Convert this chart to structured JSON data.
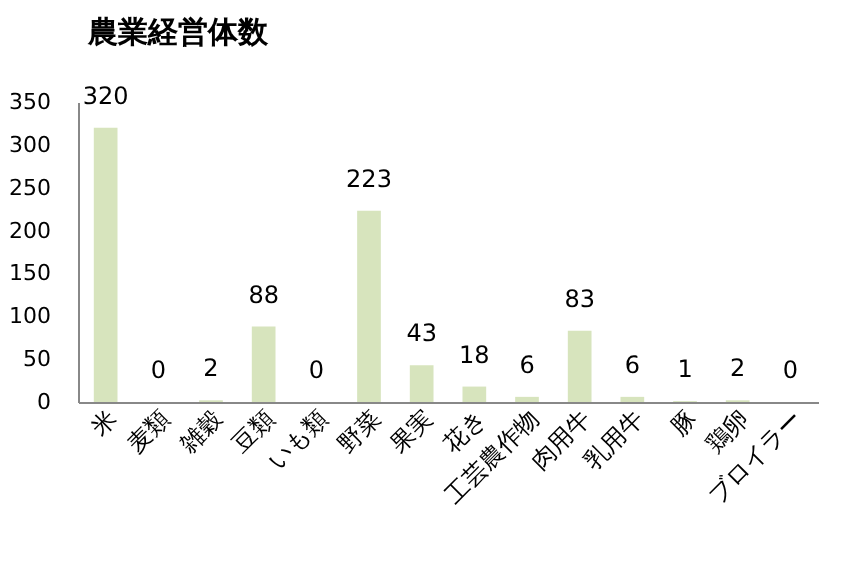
{
  "chart_data": {
    "type": "bar",
    "title": "農業経営体数",
    "categories": [
      "米",
      "麦類",
      "雑穀",
      "豆類",
      "いも類",
      "野菜",
      "果実",
      "花き",
      "工芸農作物",
      "肉用牛",
      "乳用牛",
      "豚",
      "鶏卵",
      "ブロイラー"
    ],
    "values": [
      320,
      0,
      2,
      88,
      0,
      223,
      43,
      18,
      6,
      83,
      6,
      1,
      2,
      0
    ],
    "color": "#d7e4bd",
    "ylim": [
      0,
      350
    ],
    "yticks": [
      0,
      50,
      100,
      150,
      200,
      250,
      300,
      350
    ],
    "grid": false,
    "data_labels": true
  }
}
